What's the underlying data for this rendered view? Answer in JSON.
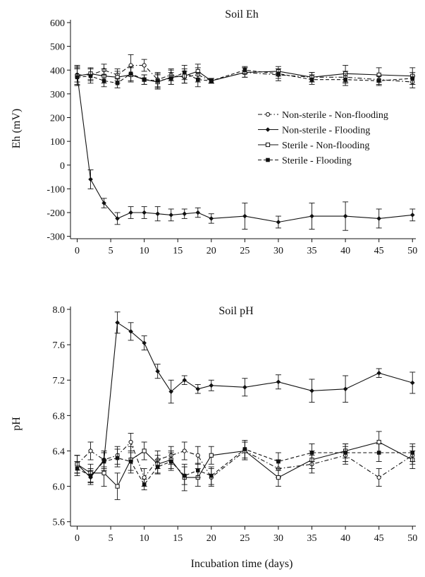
{
  "figure": {
    "shared_xlabel": "Incubation time (days)"
  },
  "chart_data": [
    {
      "type": "line",
      "title": "Soil Eh",
      "xlabel": "",
      "ylabel": "Eh (mV)",
      "xlim": [
        -1,
        50.5
      ],
      "ylim": [
        -310,
        600
      ],
      "xticks": [
        0,
        5,
        10,
        15,
        20,
        25,
        30,
        35,
        40,
        45,
        50
      ],
      "yticks": [
        -300,
        -200,
        -100,
        0,
        100,
        200,
        300,
        400,
        500,
        600
      ],
      "legend_position": "right-middle",
      "x": [
        0,
        2,
        4,
        6,
        8,
        10,
        12,
        14,
        16,
        18,
        20,
        25,
        30,
        35,
        40,
        45,
        50
      ],
      "series": [
        {
          "name": "Non-sterile - Non-flooding",
          "style": "dash-dot",
          "marker": "open-circle",
          "values": [
            380,
            380,
            400,
            380,
            420,
            420,
            360,
            380,
            370,
            380,
            355,
            390,
            380,
            370,
            370,
            360,
            350
          ],
          "errors": [
            30,
            25,
            25,
            25,
            45,
            25,
            30,
            25,
            25,
            30,
            10,
            20,
            25,
            20,
            25,
            20,
            25
          ]
        },
        {
          "name": "Non-sterile - Flooding",
          "style": "solid",
          "marker": "filled-diamond",
          "values": [
            380,
            -60,
            -160,
            -225,
            -200,
            -200,
            -205,
            -210,
            -205,
            -200,
            -225,
            -215,
            -240,
            -215,
            -215,
            -225,
            -210
          ],
          "errors": [
            40,
            40,
            20,
            25,
            25,
            25,
            30,
            25,
            20,
            20,
            20,
            55,
            25,
            55,
            60,
            40,
            25
          ]
        },
        {
          "name": "Sterile - Non-flooding",
          "style": "solid",
          "marker": "open-square",
          "values": [
            375,
            385,
            375,
            370,
            380,
            360,
            350,
            370,
            375,
            395,
            355,
            390,
            395,
            370,
            385,
            380,
            375
          ],
          "errors": [
            40,
            25,
            30,
            25,
            30,
            20,
            30,
            30,
            30,
            30,
            10,
            20,
            20,
            20,
            35,
            30,
            35
          ]
        },
        {
          "name": "Sterile - Flooding",
          "style": "dashed",
          "marker": "filled-square",
          "values": [
            370,
            375,
            355,
            345,
            385,
            360,
            355,
            365,
            390,
            360,
            355,
            400,
            385,
            360,
            360,
            355,
            365
          ],
          "errors": [
            35,
            30,
            25,
            20,
            30,
            20,
            30,
            25,
            30,
            30,
            10,
            15,
            20,
            20,
            25,
            20,
            25
          ]
        }
      ]
    },
    {
      "type": "line",
      "title": "Soil pH",
      "xlabel": "Incubation time (days)",
      "ylabel": "pH",
      "xlim": [
        -1,
        50.5
      ],
      "ylim": [
        5.55,
        8.0
      ],
      "xticks": [
        0,
        5,
        10,
        15,
        20,
        25,
        30,
        35,
        40,
        45,
        50
      ],
      "yticks": [
        5.6,
        6.0,
        6.4,
        6.8,
        7.2,
        7.6,
        8.0
      ],
      "x": [
        0,
        2,
        4,
        6,
        8,
        10,
        12,
        14,
        16,
        18,
        20,
        25,
        30,
        35,
        40,
        45,
        50
      ],
      "series": [
        {
          "name": "Non-sterile - Non-flooding",
          "style": "dash-dot",
          "marker": "open-circle",
          "values": [
            6.25,
            6.4,
            6.3,
            6.35,
            6.5,
            6.1,
            6.3,
            6.35,
            6.4,
            6.35,
            6.1,
            6.4,
            6.2,
            6.25,
            6.35,
            6.1,
            6.35
          ],
          "errors": [
            0.1,
            0.1,
            0.1,
            0.1,
            0.1,
            0.1,
            0.1,
            0.1,
            0.1,
            0.1,
            0.1,
            0.1,
            0.1,
            0.1,
            0.1,
            0.1,
            0.1
          ]
        },
        {
          "name": "Non-sterile - Flooding",
          "style": "solid",
          "marker": "filled-diamond",
          "values": [
            6.25,
            6.1,
            6.3,
            7.85,
            7.75,
            7.62,
            7.3,
            7.07,
            7.2,
            7.1,
            7.14,
            7.12,
            7.18,
            7.08,
            7.1,
            7.28,
            7.17
          ],
          "errors": [
            0.1,
            0.08,
            0.08,
            0.12,
            0.1,
            0.08,
            0.08,
            0.13,
            0.05,
            0.05,
            0.06,
            0.1,
            0.08,
            0.13,
            0.15,
            0.05,
            0.12
          ]
        },
        {
          "name": "Sterile - Non-flooding",
          "style": "solid",
          "marker": "open-square",
          "values": [
            6.25,
            6.15,
            6.15,
            6.0,
            6.3,
            6.4,
            6.25,
            6.3,
            6.1,
            6.1,
            6.35,
            6.4,
            6.1,
            6.3,
            6.4,
            6.5,
            6.3
          ],
          "errors": [
            0.1,
            0.1,
            0.15,
            0.15,
            0.15,
            0.1,
            0.1,
            0.1,
            0.15,
            0.1,
            0.1,
            0.1,
            0.1,
            0.1,
            0.08,
            0.12,
            0.1
          ]
        },
        {
          "name": "Sterile - Flooding",
          "style": "dashed",
          "marker": "filled-square",
          "values": [
            6.2,
            6.12,
            6.28,
            6.32,
            6.28,
            6.02,
            6.22,
            6.28,
            6.12,
            6.18,
            6.12,
            6.42,
            6.28,
            6.38,
            6.38,
            6.38,
            6.38
          ],
          "errors": [
            0.08,
            0.08,
            0.1,
            0.1,
            0.1,
            0.06,
            0.08,
            0.1,
            0.1,
            0.08,
            0.1,
            0.1,
            0.1,
            0.1,
            0.1,
            0.1,
            0.1
          ]
        }
      ]
    }
  ]
}
